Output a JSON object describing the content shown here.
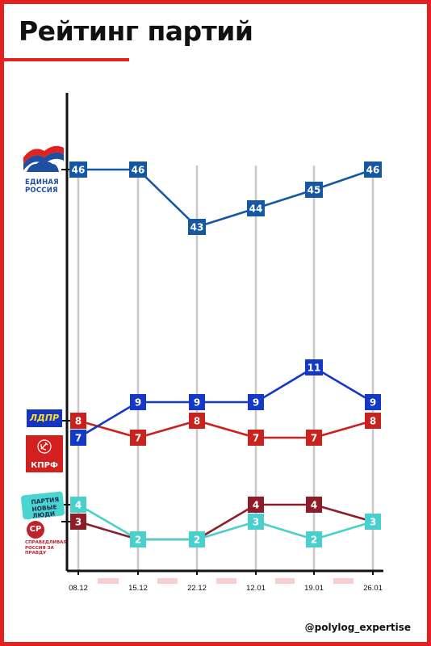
{
  "header": {
    "title": "Рейтинг партий"
  },
  "watermark": "@polylog_expertise",
  "colors": {
    "frame": "#e32120",
    "accent": "#e32120",
    "axis": "#111111",
    "gridline": "#c8c8c8",
    "date_highlight": "#f7cfcf"
  },
  "logos": {
    "united_russia": "ЕДИНАЯ РОССИЯ",
    "ldpr": "ЛДПР",
    "kprf": "КПРФ",
    "new_people": "ПАРТИЯ НОВЫЕ ЛЮДИ",
    "sr": "СР",
    "sr_text": "СПРАВЕДЛИВАЯ РОССИЯ ЗА ПРАВДУ"
  },
  "chart_data": {
    "type": "line",
    "title": "Рейтинг партий",
    "xlabel": "",
    "ylabel": "",
    "categories": [
      "08.12",
      "15.12",
      "22.12",
      "12.01",
      "19.01",
      "26.01"
    ],
    "grid": "vertical",
    "series": [
      {
        "name": "ЕДИНАЯ РОССИЯ",
        "color": "#1458a4",
        "label_color": "#1458a4",
        "values": [
          46,
          46,
          43,
          44,
          45,
          46
        ],
        "axis_marker": true
      },
      {
        "name": "ЛДПР",
        "color": "#1438c8",
        "label_color": "#1438c8",
        "values": [
          7,
          9,
          9,
          9,
          11,
          9
        ],
        "axis_marker": false
      },
      {
        "name": "КПРФ",
        "color": "#c9211e",
        "label_color": "#c9211e",
        "values": [
          8,
          7,
          8,
          7,
          7,
          8
        ],
        "axis_marker": true
      },
      {
        "name": "ПАРТИЯ НОВЫЕ ЛЮДИ",
        "color": "#4ad0cc",
        "label_color": "#4ad0cc",
        "values": [
          4,
          2,
          2,
          3,
          2,
          3
        ],
        "axis_marker": true
      },
      {
        "name": "СР",
        "color": "#8e1d2a",
        "label_color": "#8e1d2a",
        "values": [
          3,
          2,
          2,
          4,
          4,
          3
        ],
        "axis_marker": true
      }
    ]
  }
}
